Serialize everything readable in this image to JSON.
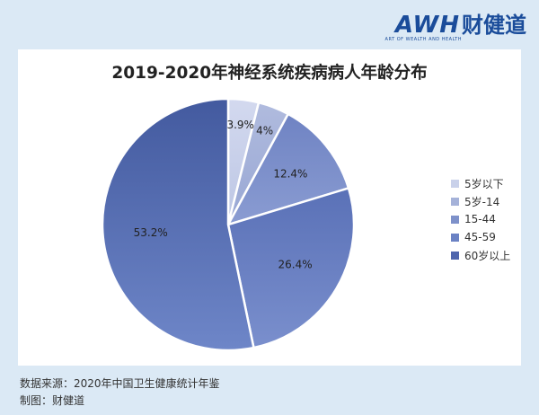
{
  "brand": {
    "logo_latin": "AWH",
    "logo_cn": "财健道",
    "tagline": "ART OF WEALTH AND HEALTH"
  },
  "footer": {
    "source": "数据来源：2020年中国卫生健康统计年鉴",
    "credit": "制图：财健道"
  },
  "chart_data": {
    "type": "pie",
    "title": "2019-2020年神经系统疾病病人年龄分布",
    "categories": [
      "5岁以下",
      "5岁-14",
      "15-44",
      "45-59",
      "60岁以上"
    ],
    "values": [
      3.9,
      4,
      12.4,
      26.4,
      53.2
    ],
    "labels": [
      "3.9%",
      "4%",
      "12.4%",
      "26.4%",
      "53.2%"
    ],
    "colors": [
      "#c9d1ea",
      "#a5b2d9",
      "#7e91ca",
      "#6b82c4",
      "#4f66ad"
    ],
    "legend_position": "right",
    "start_angle": "12 o'clock",
    "direction": "clockwise"
  }
}
